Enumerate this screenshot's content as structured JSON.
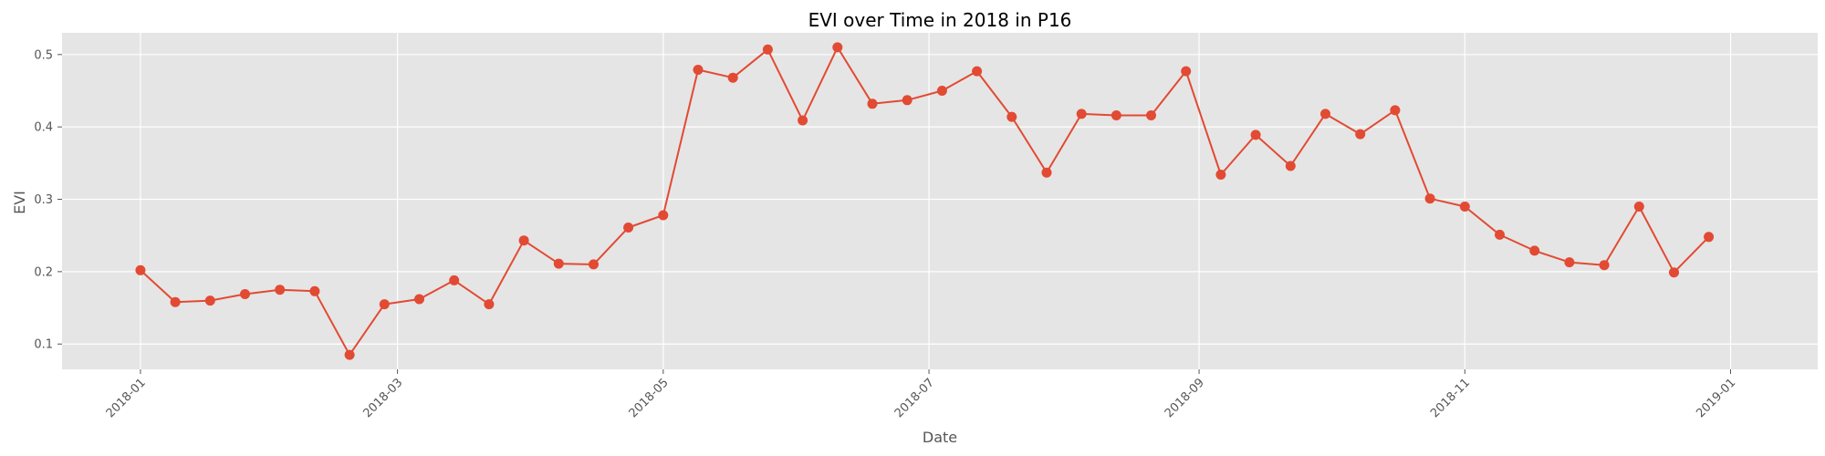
{
  "chart_data": {
    "type": "line",
    "title": "EVI over Time in 2018 in P16",
    "xlabel": "Date",
    "ylabel": "EVI",
    "grid": true,
    "legend": "none",
    "colors": {
      "line": "#E24A33",
      "plot_background": "#E5E5E5",
      "grid": "#FFFFFF",
      "tick_text": "#555555"
    },
    "xlim": [
      "2017-12-14",
      "2019-01-21"
    ],
    "ylim": [
      0.065,
      0.53
    ],
    "x_ticks": [
      "2018-01-01",
      "2018-03-01",
      "2018-05-01",
      "2018-07-01",
      "2018-09-01",
      "2018-11-01",
      "2019-01-01"
    ],
    "x_tick_labels": [
      "2018-01",
      "2018-03",
      "2018-05",
      "2018-07",
      "2018-09",
      "2018-11",
      "2019-01"
    ],
    "y_ticks": [
      0.1,
      0.2,
      0.3,
      0.4,
      0.5
    ],
    "y_tick_labels": [
      "0.1",
      "0.2",
      "0.3",
      "0.4",
      "0.5"
    ],
    "series": [
      {
        "x": [
          "2018-01-01",
          "2018-01-09",
          "2018-01-17",
          "2018-01-25",
          "2018-02-02",
          "2018-02-10",
          "2018-02-18",
          "2018-02-26",
          "2018-03-06",
          "2018-03-14",
          "2018-03-22",
          "2018-03-30",
          "2018-04-07",
          "2018-04-15",
          "2018-04-23",
          "2018-05-01",
          "2018-05-09",
          "2018-05-17",
          "2018-05-25",
          "2018-06-02",
          "2018-06-10",
          "2018-06-18",
          "2018-06-26",
          "2018-07-04",
          "2018-07-12",
          "2018-07-20",
          "2018-07-28",
          "2018-08-05",
          "2018-08-13",
          "2018-08-21",
          "2018-08-29",
          "2018-09-06",
          "2018-09-14",
          "2018-09-22",
          "2018-09-30",
          "2018-10-08",
          "2018-10-16",
          "2018-10-24",
          "2018-11-01",
          "2018-11-09",
          "2018-11-17",
          "2018-11-25",
          "2018-12-03",
          "2018-12-11",
          "2018-12-19",
          "2018-12-27"
        ],
        "y": [
          0.202,
          0.158,
          0.16,
          0.169,
          0.175,
          0.173,
          0.085,
          0.155,
          0.162,
          0.188,
          0.155,
          0.243,
          0.211,
          0.21,
          0.261,
          0.278,
          0.479,
          0.468,
          0.507,
          0.409,
          0.51,
          0.432,
          0.437,
          0.45,
          0.477,
          0.414,
          0.337,
          0.418,
          0.416,
          0.416,
          0.477,
          0.334,
          0.389,
          0.346,
          0.418,
          0.39,
          0.423,
          0.301,
          0.29,
          0.251,
          0.229,
          0.213,
          0.209,
          0.29,
          0.199,
          0.248
        ]
      }
    ]
  }
}
